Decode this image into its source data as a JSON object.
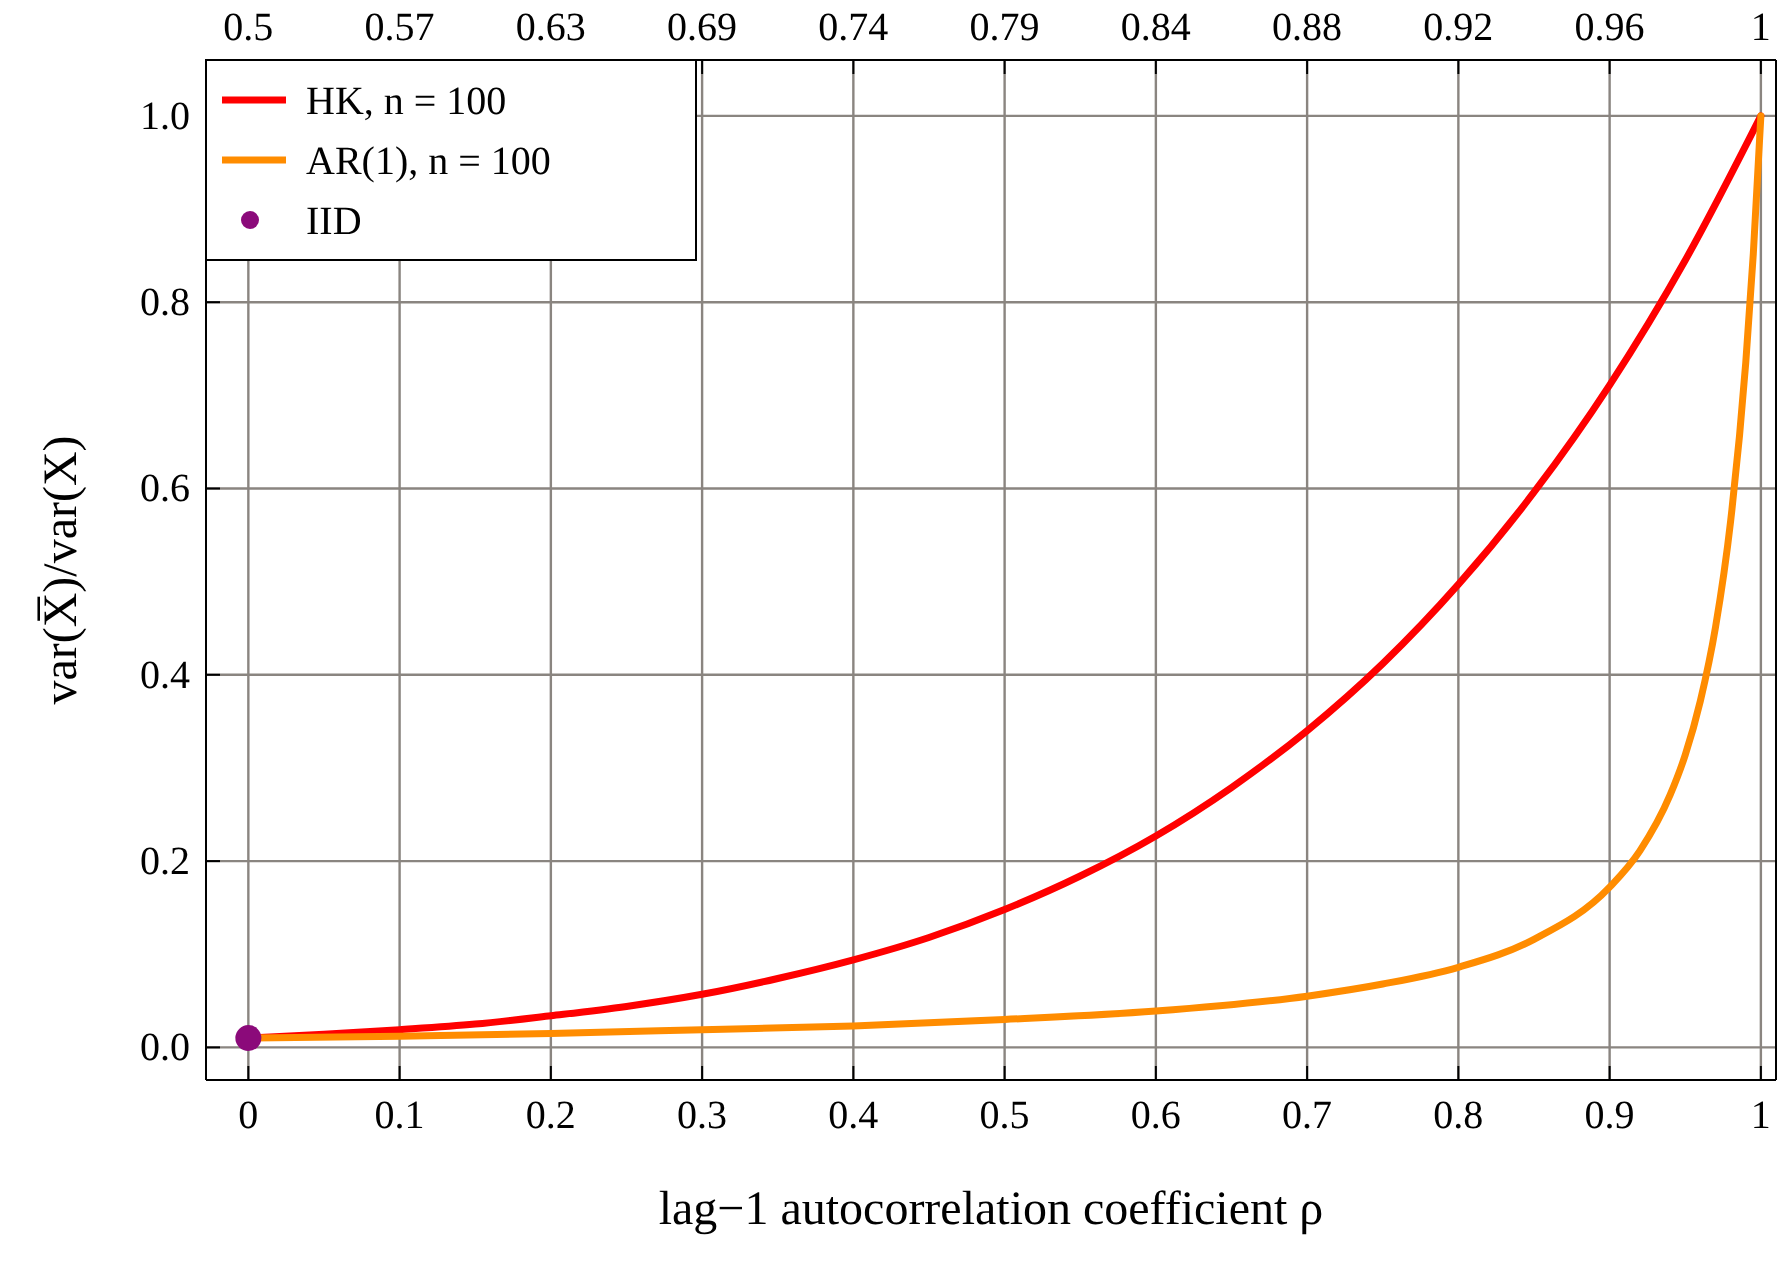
{
  "chart_data": {
    "type": "line",
    "xlabel": "lag−1 autocorrelation coefficient ρ",
    "ylabel": "var(X̅)/var(X)",
    "xlim": [
      -0.028,
      1.01
    ],
    "ylim": [
      -0.035,
      1.06
    ],
    "xticks": [
      0,
      0.1,
      0.2,
      0.3,
      0.4,
      0.5,
      0.6,
      0.7,
      0.8,
      0.9,
      1
    ],
    "annotations": [
      "0.5",
      "0.57",
      "0.63",
      "0.69",
      "0.74",
      "0.79",
      "0.84",
      "0.88",
      "0.92",
      "0.96",
      "1"
    ],
    "yticks": [
      {
        "value": 0,
        "label": "0.0"
      },
      {
        "value": 0.2,
        "label": "0.2"
      },
      {
        "value": 0.4,
        "label": "0.4"
      },
      {
        "value": 0.6,
        "label": "0.6"
      },
      {
        "value": 0.8,
        "label": "0.8"
      },
      {
        "value": 1,
        "label": "1.0"
      }
    ],
    "grid": true,
    "legend": "top left",
    "series": [
      {
        "name": "HK, n = 100",
        "color": "#ff0000",
        "x": [
          0,
          0.05,
          0.1,
          0.15,
          0.2,
          0.25,
          0.3,
          0.35,
          0.4,
          0.45,
          0.5,
          0.55,
          0.6,
          0.65,
          0.7,
          0.75,
          0.8,
          0.85,
          0.9,
          0.95,
          1
        ],
        "values": [
          0.01,
          0.014,
          0.019,
          0.025,
          0.034,
          0.044,
          0.057,
          0.074,
          0.094,
          0.118,
          0.148,
          0.184,
          0.227,
          0.279,
          0.34,
          0.412,
          0.497,
          0.596,
          0.711,
          0.845,
          1
        ]
      },
      {
        "name": "AR(1), n = 100",
        "color": "#ff8c00",
        "x": [
          0,
          0.1,
          0.2,
          0.3,
          0.4,
          0.5,
          0.6,
          0.7,
          0.75,
          0.8,
          0.85,
          0.9,
          0.92,
          0.94,
          0.95,
          0.96,
          0.97,
          0.98,
          0.99,
          0.995,
          1
        ],
        "values": [
          0.01,
          0.012,
          0.015,
          0.019,
          0.023,
          0.03,
          0.039,
          0.055,
          0.068,
          0.086,
          0.116,
          0.172,
          0.211,
          0.271,
          0.314,
          0.372,
          0.451,
          0.565,
          0.735,
          0.852,
          1
        ]
      },
      {
        "name": "IID",
        "type": "scatter",
        "color": "#8b0a7a",
        "x": [
          0
        ],
        "values": [
          0.01
        ]
      }
    ]
  }
}
